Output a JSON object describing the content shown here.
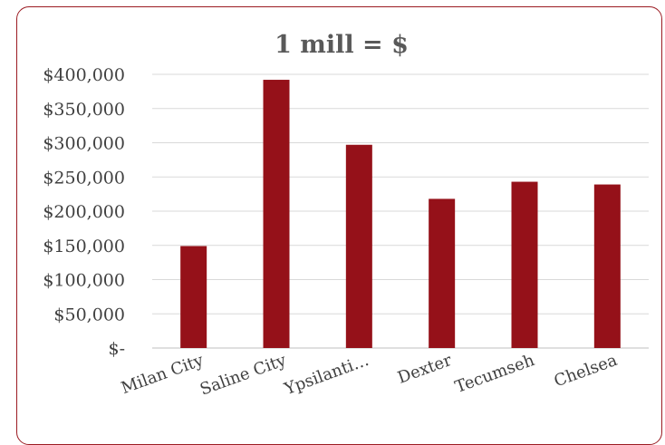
{
  "chart_data": {
    "type": "bar",
    "title": "1 mill = $",
    "xlabel": "",
    "ylabel": "",
    "categories": [
      "Milan City",
      "Saline City",
      "Ypsilanti…",
      "Dexter",
      "Tecumseh",
      "Chelsea"
    ],
    "values": [
      149000,
      392000,
      297000,
      218000,
      243000,
      239000
    ],
    "ylim": [
      0,
      400000
    ],
    "y_ticks": [
      0,
      50000,
      100000,
      150000,
      200000,
      250000,
      300000,
      350000,
      400000
    ],
    "y_tick_labels": [
      "$-",
      "$50,000",
      "$100,000",
      "$150,000",
      "$200,000",
      "$250,000",
      "$300,000",
      "$350,000",
      "$400,000"
    ],
    "grid": true,
    "legend": "none",
    "bar_color": "#951119",
    "border_color": "#9b1b22"
  }
}
